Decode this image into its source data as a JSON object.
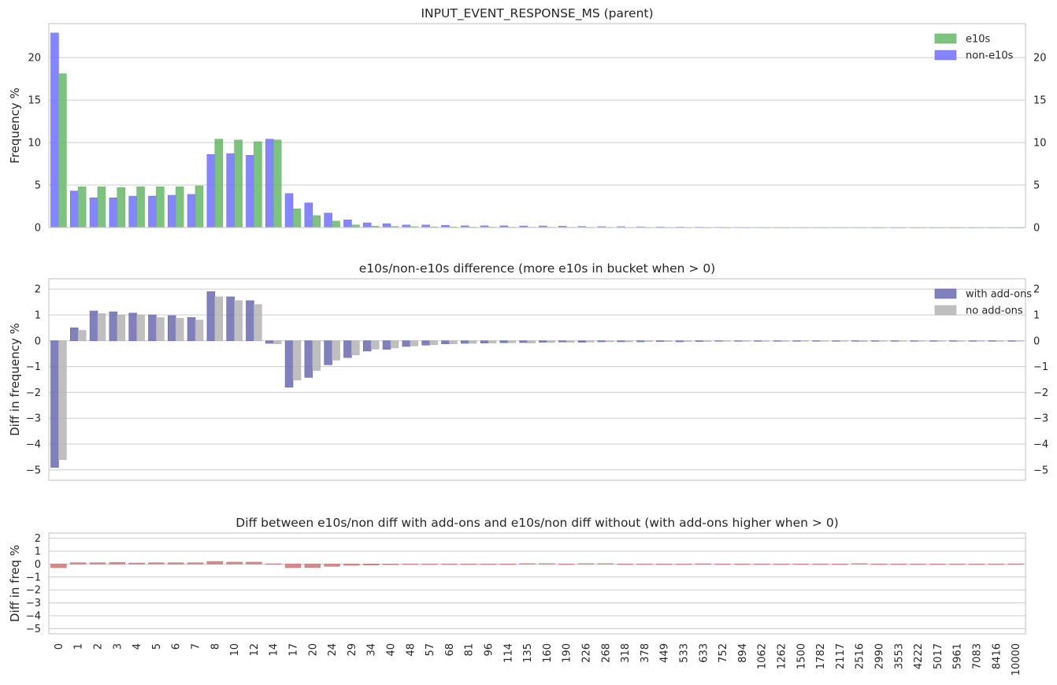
{
  "chart_data": [
    {
      "type": "bar",
      "title": "INPUT_EVENT_RESPONSE_MS (parent)",
      "xlabel": "",
      "ylabel": "Frequency %",
      "ylim": [
        0,
        24
      ],
      "yticks": [
        0,
        5,
        10,
        15,
        20
      ],
      "grid": true,
      "legend": "top-right",
      "categories": [
        "0",
        "1",
        "2",
        "3",
        "4",
        "5",
        "6",
        "7",
        "8",
        "10",
        "12",
        "14",
        "17",
        "20",
        "24",
        "29",
        "34",
        "40",
        "48",
        "57",
        "68",
        "81",
        "96",
        "114",
        "135",
        "160",
        "190",
        "226",
        "268",
        "318",
        "378",
        "449",
        "533",
        "633",
        "752",
        "894",
        "1062",
        "1262",
        "1500",
        "1782",
        "2117",
        "2516",
        "2990",
        "3553",
        "4222",
        "5017",
        "5961",
        "7083",
        "8416",
        "10000"
      ],
      "series": [
        {
          "name": "non-e10s",
          "color": "#7070ff",
          "values": [
            22.9,
            4.3,
            3.5,
            3.5,
            3.7,
            3.7,
            3.8,
            3.9,
            8.6,
            8.7,
            8.5,
            10.4,
            4.0,
            2.9,
            1.7,
            0.9,
            0.55,
            0.45,
            0.3,
            0.3,
            0.25,
            0.2,
            0.2,
            0.2,
            0.18,
            0.18,
            0.15,
            0.12,
            0.1,
            0.1,
            0.08,
            0.07,
            0.06,
            0.05,
            0.04,
            0.03,
            0.03,
            0.02,
            0.02,
            0.02,
            0.02,
            0.02,
            0.01,
            0.01,
            0.01,
            0.01,
            0.01,
            0.01,
            0.01,
            0.01
          ]
        },
        {
          "name": "e10s",
          "color": "#66b866",
          "values": [
            18.1,
            4.8,
            4.8,
            4.7,
            4.8,
            4.8,
            4.8,
            4.9,
            10.4,
            10.3,
            10.1,
            10.3,
            2.2,
            1.4,
            0.75,
            0.3,
            0.15,
            0.12,
            0.1,
            0.08,
            0.07,
            0.06,
            0.05,
            0.05,
            0.04,
            0.04,
            0.04,
            0.03,
            0.03,
            0.02,
            0.02,
            0.02,
            0.02,
            0.02,
            0.01,
            0.01,
            0.01,
            0.01,
            0.01,
            0.01,
            0.01,
            0.01,
            0.01,
            0.01,
            0.01,
            0.01,
            0.01,
            0.01,
            0.01,
            0.01
          ]
        }
      ]
    },
    {
      "type": "bar",
      "title": "e10s/non-e10s difference (more e10s in bucket when > 0)",
      "xlabel": "",
      "ylabel": "Diff in frequency %",
      "ylim": [
        -5.4,
        2.4
      ],
      "yticks": [
        -5,
        -4,
        -3,
        -2,
        -1,
        0,
        1,
        2
      ],
      "grid": true,
      "legend": "top-right",
      "categories": [
        "0",
        "1",
        "2",
        "3",
        "4",
        "5",
        "6",
        "7",
        "8",
        "10",
        "12",
        "14",
        "17",
        "20",
        "24",
        "29",
        "34",
        "40",
        "48",
        "57",
        "68",
        "81",
        "96",
        "114",
        "135",
        "160",
        "190",
        "226",
        "268",
        "318",
        "378",
        "449",
        "533",
        "633",
        "752",
        "894",
        "1062",
        "1262",
        "1500",
        "1782",
        "2117",
        "2516",
        "2990",
        "3553",
        "4222",
        "5017",
        "5961",
        "7083",
        "8416",
        "10000"
      ],
      "series": [
        {
          "name": "with add-ons",
          "color": "#6a6ab0",
          "values": [
            -4.9,
            0.5,
            1.15,
            1.12,
            1.07,
            1.0,
            0.97,
            0.9,
            1.9,
            1.7,
            1.55,
            -0.1,
            -1.8,
            -1.42,
            -0.93,
            -0.65,
            -0.4,
            -0.33,
            -0.22,
            -0.17,
            -0.12,
            -0.1,
            -0.09,
            -0.08,
            -0.07,
            -0.06,
            -0.05,
            -0.06,
            -0.04,
            -0.04,
            -0.04,
            -0.03,
            -0.04,
            -0.03,
            -0.02,
            -0.02,
            -0.02,
            -0.02,
            -0.02,
            -0.02,
            -0.02,
            -0.02,
            -0.02,
            -0.02,
            -0.02,
            -0.02,
            -0.02,
            -0.02,
            -0.02,
            -0.02
          ]
        },
        {
          "name": "no add-ons",
          "color": "#b4b4b4",
          "values": [
            -4.6,
            0.4,
            1.05,
            1.0,
            1.0,
            0.9,
            0.87,
            0.8,
            1.7,
            1.55,
            1.4,
            -0.12,
            -1.52,
            -1.15,
            -0.75,
            -0.55,
            -0.32,
            -0.28,
            -0.2,
            -0.15,
            -0.12,
            -0.1,
            -0.09,
            -0.08,
            -0.09,
            -0.07,
            -0.06,
            -0.05,
            -0.04,
            -0.04,
            -0.03,
            -0.03,
            -0.03,
            -0.03,
            -0.02,
            -0.02,
            -0.02,
            -0.02,
            -0.02,
            -0.02,
            -0.02,
            -0.03,
            -0.02,
            -0.02,
            -0.02,
            -0.02,
            -0.02,
            -0.02,
            -0.02,
            -0.02
          ]
        }
      ]
    },
    {
      "type": "bar",
      "title": "Diff between e10s/non diff with add-ons and e10s/non diff without (with add-ons higher when > 0)",
      "xlabel": "",
      "ylabel": "Diff in freq %",
      "ylim": [
        -5.4,
        2.4
      ],
      "yticks": [
        -5,
        -4,
        -3,
        -2,
        -1,
        0,
        1,
        2
      ],
      "grid": true,
      "categories": [
        "0",
        "1",
        "2",
        "3",
        "4",
        "5",
        "6",
        "7",
        "8",
        "10",
        "12",
        "14",
        "17",
        "20",
        "24",
        "29",
        "34",
        "40",
        "48",
        "57",
        "68",
        "81",
        "96",
        "114",
        "135",
        "160",
        "190",
        "226",
        "268",
        "318",
        "378",
        "449",
        "533",
        "633",
        "752",
        "894",
        "1062",
        "1262",
        "1500",
        "1782",
        "2117",
        "2516",
        "2990",
        "3553",
        "4222",
        "5017",
        "5961",
        "7083",
        "8416",
        "10000"
      ],
      "series": [
        {
          "color": "#c87878",
          "values": [
            -0.28,
            0.1,
            0.1,
            0.12,
            0.08,
            0.1,
            0.1,
            0.1,
            0.2,
            0.15,
            0.15,
            0.02,
            -0.28,
            -0.27,
            -0.18,
            -0.1,
            -0.08,
            -0.05,
            -0.02,
            -0.03,
            0.0,
            0.0,
            0.0,
            0.0,
            0.03,
            0.03,
            0.0,
            0.03,
            0.03,
            0.0,
            -0.01,
            0.0,
            -0.01,
            0.02,
            0.0,
            0.0,
            0.0,
            0.0,
            0.0,
            0.0,
            0.0,
            0.03,
            0.0,
            0.0,
            0.0,
            0.0,
            0.0,
            0.0,
            0.0,
            0.01
          ]
        }
      ]
    }
  ]
}
